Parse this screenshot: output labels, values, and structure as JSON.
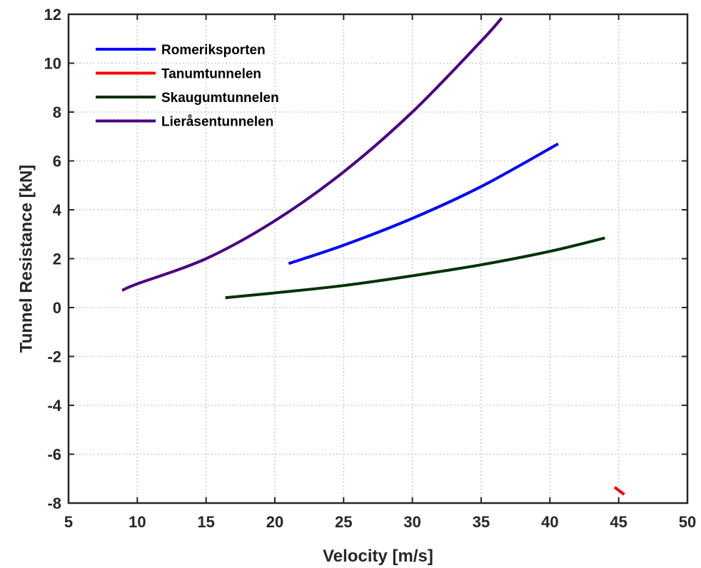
{
  "chart_data": {
    "type": "line",
    "xlabel": "Velocity [m/s]",
    "ylabel": "Tunnel Resistance [kN]",
    "xlim": [
      5,
      50
    ],
    "ylim": [
      -8,
      12
    ],
    "xticks": [
      5,
      10,
      15,
      20,
      25,
      30,
      35,
      40,
      45,
      50
    ],
    "yticks": [
      -8,
      -6,
      -4,
      -2,
      0,
      2,
      4,
      6,
      8,
      10,
      12
    ],
    "grid": true,
    "legend_position": "top-left",
    "series": [
      {
        "name": "Romeriksporten",
        "color": "#0000ff",
        "x": [
          21,
          25,
          30,
          35,
          40.6
        ],
        "y": [
          1.8,
          2.55,
          3.65,
          4.95,
          6.7
        ]
      },
      {
        "name": "Tanumtunnelen",
        "color": "#ff0000",
        "x": [
          44.7,
          45.4
        ],
        "y": [
          -7.35,
          -7.65
        ]
      },
      {
        "name": "Skaugumtunnelen",
        "color": "#003300",
        "x": [
          16.4,
          20,
          25,
          30,
          35,
          40,
          44
        ],
        "y": [
          0.4,
          0.6,
          0.9,
          1.3,
          1.75,
          2.3,
          2.85
        ]
      },
      {
        "name": "Lieråsentunnelen",
        "color": "#4b0082",
        "x": [
          8.9,
          10,
          15,
          20,
          25,
          30,
          35,
          36.5
        ],
        "y": [
          0.7,
          0.97,
          2.0,
          3.55,
          5.55,
          8.0,
          10.9,
          11.85
        ]
      }
    ]
  }
}
